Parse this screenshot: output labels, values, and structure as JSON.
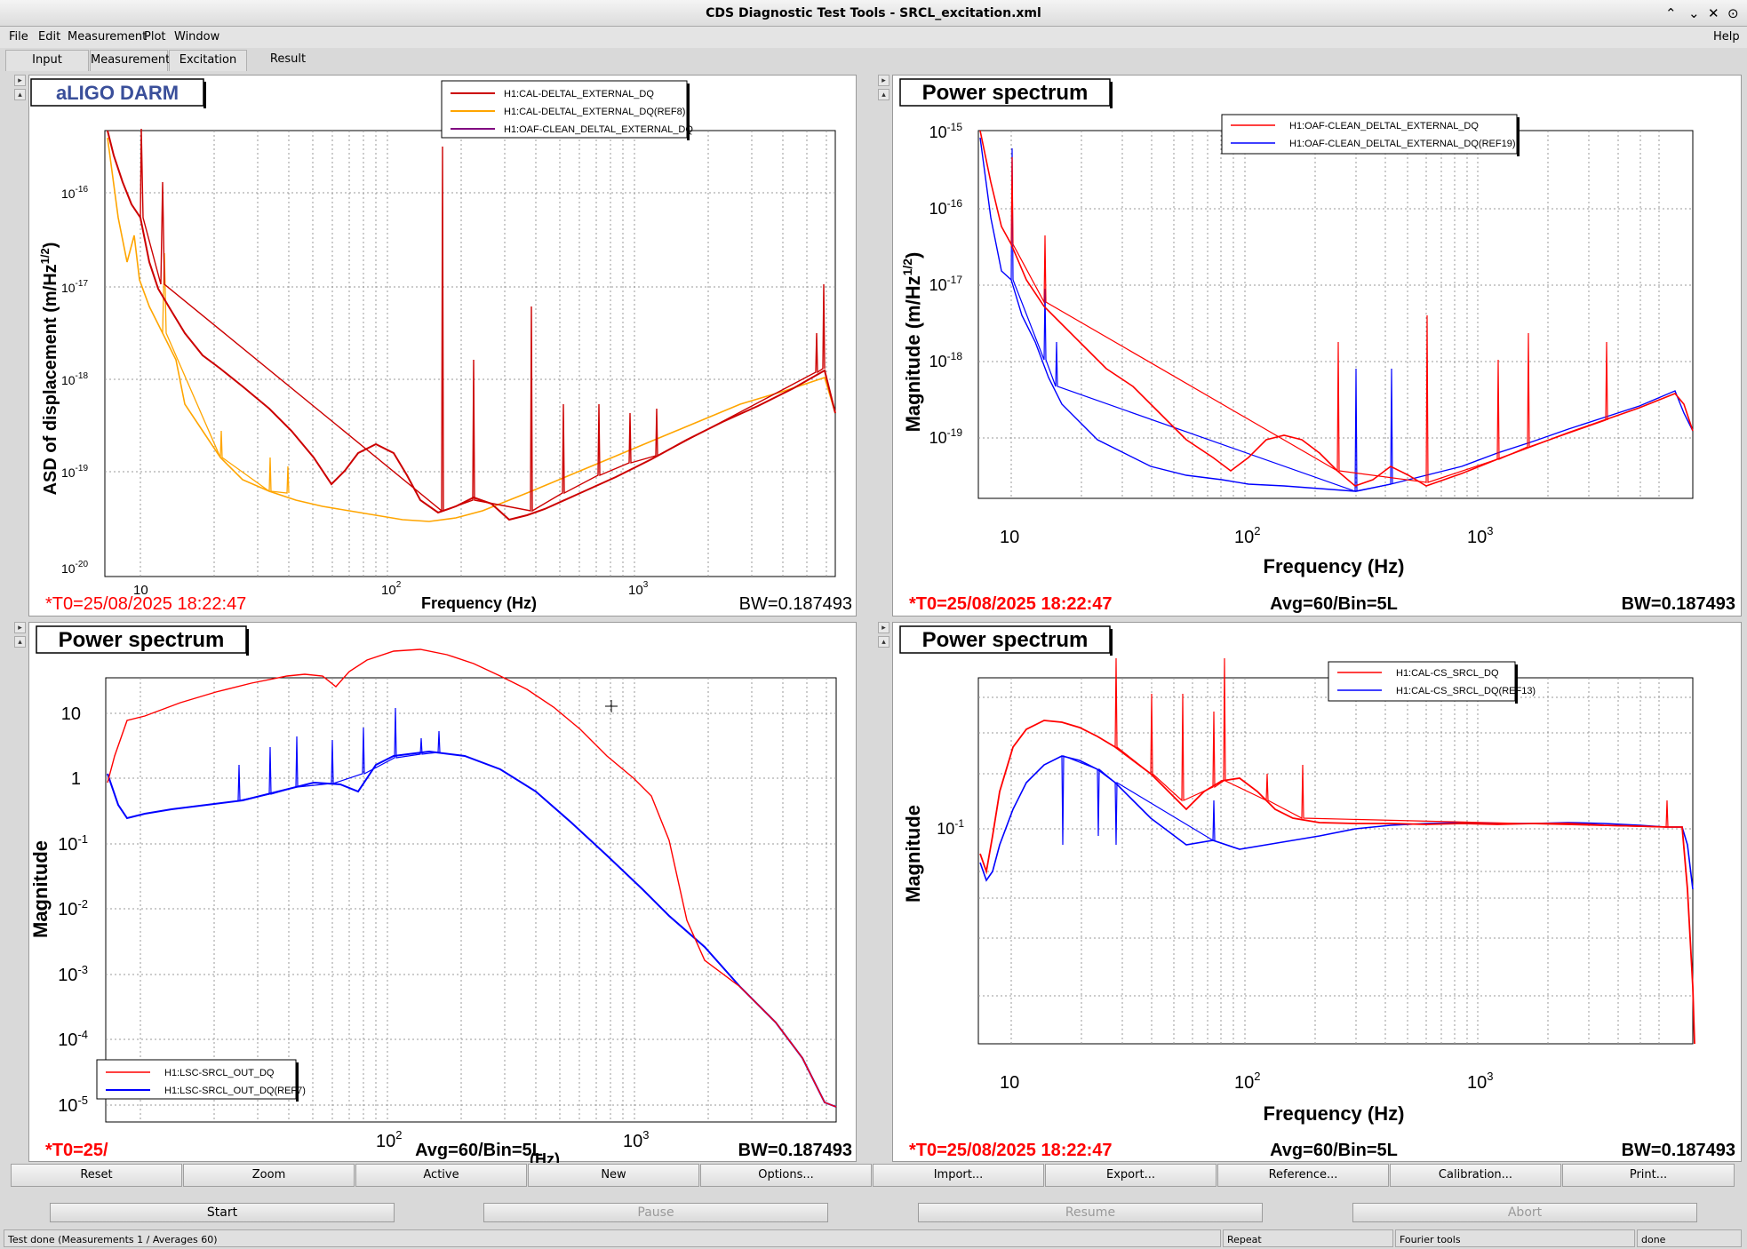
{
  "window": {
    "title": "CDS Diagnostic Test Tools - SRCL_excitation.xml",
    "controls": [
      "⌃",
      "⌄",
      "✕",
      "⊙"
    ]
  },
  "menu": {
    "file": "File",
    "edit": "Edit",
    "measurement": "Measurement",
    "plot": "Plot",
    "window": "Window",
    "help": "Help"
  },
  "tabs": [
    "Input",
    "Measurement",
    "Excitation",
    "Result"
  ],
  "panels": {
    "p1": {
      "title": "aLIGO DARM",
      "ylabel": "ASD of displacement (m/Hz",
      "ylabel_sup": "1/2",
      "ylabel_end": ")",
      "xlabel": "Frequency (Hz)",
      "ytick_base": "10",
      "yticks_exp": [
        "-16",
        "-17",
        "-18",
        "-19",
        "-20"
      ],
      "xtick_base": "10",
      "xticks": [
        "10",
        "2",
        "3"
      ],
      "t0": "*T0=25/08/2025 18:22:47",
      "bw": "BW=0.187493",
      "legend": [
        "H1:CAL-DELTAL_EXTERNAL_DQ",
        "H1:CAL-DELTAL_EXTERNAL_DQ(REF8)",
        "H1:OAF-CLEAN_DELTAL_EXTERNAL_DQ"
      ],
      "colors": [
        "#cc0000",
        "#ffa500",
        "#800080"
      ]
    },
    "p2": {
      "title": "Power spectrum",
      "ylabel": "Magnitude (m/Hz",
      "ylabel_sup": "1/2",
      "ylabel_end": ")",
      "xlabel": "Frequency (Hz)",
      "ytick_base": "10",
      "yticks_exp": [
        "-15",
        "-16",
        "-17",
        "-18",
        "-19"
      ],
      "xtick_base": "10",
      "xticks": [
        "10",
        "2",
        "3"
      ],
      "t0": "*T0=25/08/2025 18:22:47",
      "avg": "Avg=60/Bin=5L",
      "bw": "BW=0.187493",
      "legend": [
        "H1:OAF-CLEAN_DELTAL_EXTERNAL_DQ",
        "H1:OAF-CLEAN_DELTAL_EXTERNAL_DQ(REF19)"
      ],
      "colors": [
        "#ff0000",
        "#0000ff"
      ]
    },
    "p3": {
      "title": "Power spectrum",
      "ylabel": "Magnitude",
      "xlabel": "(Hz)",
      "yticks_plain": [
        "10",
        "1"
      ],
      "ytick_base": "10",
      "yticks_exp": [
        "-1",
        "-2",
        "-3",
        "-4",
        "-5"
      ],
      "xtick_base": "10",
      "xticks": [
        "2",
        "3"
      ],
      "t0": "*T0=25/",
      "avg": "Avg=60/Bin=5L",
      "bw": "BW=0.187493",
      "legend": [
        "H1:LSC-SRCL_OUT_DQ",
        "H1:LSC-SRCL_OUT_DQ(REF7)"
      ],
      "colors": [
        "#ff0000",
        "#0000ff"
      ]
    },
    "p4": {
      "title": "Power spectrum",
      "ylabel": "Magnitude",
      "xlabel": "Frequency (Hz)",
      "ytick_base": "10",
      "yticks_exp": [
        "-1"
      ],
      "xtick_base": "10",
      "xticks": [
        "10",
        "2",
        "3"
      ],
      "t0": "*T0=25/08/2025 18:22:47",
      "avg": "Avg=60/Bin=5L",
      "bw": "BW=0.187493",
      "legend": [
        "H1:CAL-CS_SRCL_DQ",
        "H1:CAL-CS_SRCL_DQ(REF13)"
      ],
      "colors": [
        "#ff0000",
        "#0000ff"
      ]
    }
  },
  "toolbar": [
    "Reset",
    "Zoom",
    "Active",
    "New",
    "Options...",
    "Import...",
    "Export...",
    "Reference...",
    "Calibration...",
    "Print..."
  ],
  "actions": {
    "start": "Start",
    "pause": "Pause",
    "resume": "Resume",
    "abort": "Abort"
  },
  "status": {
    "message": "Test done (Measurements 1 / Averages 60)",
    "repeat": "Repeat",
    "tools": "Fourier tools",
    "state": "done"
  }
}
